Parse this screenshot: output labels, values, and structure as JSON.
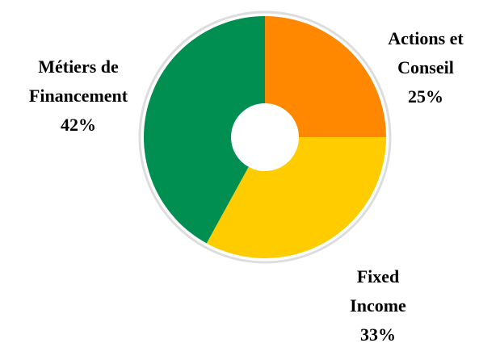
{
  "chart_data": {
    "type": "donut",
    "categories": [
      "Actions et Conseil",
      "Fixed Income",
      "Métiers de Financement"
    ],
    "values": [
      25,
      33,
      42
    ],
    "value_labels": [
      "25%",
      "33%",
      "42%"
    ],
    "colors": [
      "#ff8800",
      "#ffcc00",
      "#008f50"
    ]
  }
}
